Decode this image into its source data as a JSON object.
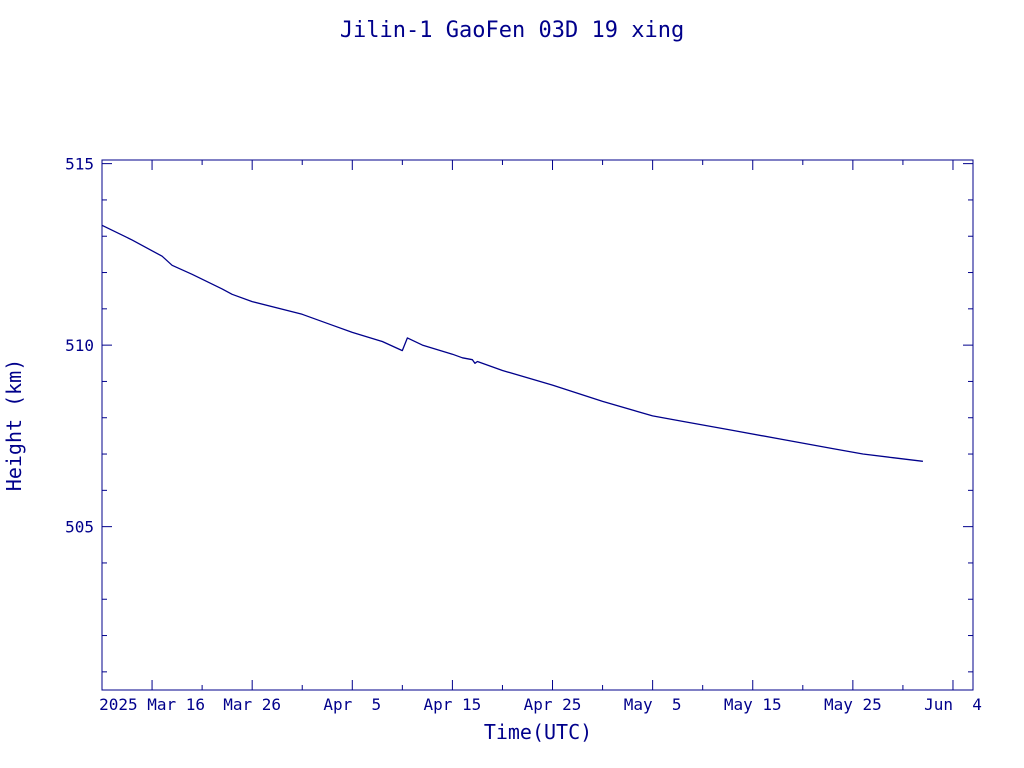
{
  "chart_data": {
    "type": "line",
    "title": "Jilin-1 GaoFen 03D 19 xing",
    "xlabel": "Time(UTC)",
    "ylabel": "Height (km)",
    "color": "#00008b",
    "x_range": [
      "2025-03-11",
      "2025-06-06"
    ],
    "ylim": [
      500.5,
      515.1
    ],
    "x_ticks": [
      {
        "date": "2025-03-16",
        "label": "2025 Mar 16"
      },
      {
        "date": "2025-03-26",
        "label": "Mar 26"
      },
      {
        "date": "2025-04-05",
        "label": "Apr  5"
      },
      {
        "date": "2025-04-15",
        "label": "Apr 15"
      },
      {
        "date": "2025-04-25",
        "label": "Apr 25"
      },
      {
        "date": "2025-05-05",
        "label": "May  5"
      },
      {
        "date": "2025-05-15",
        "label": "May 15"
      },
      {
        "date": "2025-05-25",
        "label": "May 25"
      },
      {
        "date": "2025-06-04",
        "label": "Jun  4"
      }
    ],
    "y_ticks": [
      515,
      510,
      505
    ],
    "series": [
      {
        "points": [
          [
            "2025-03-11",
            513.3
          ],
          [
            "2025-03-14",
            512.9
          ],
          [
            "2025-03-16",
            512.6
          ],
          [
            "2025-03-17",
            512.45
          ],
          [
            "2025-03-18",
            512.2
          ],
          [
            "2025-03-20",
            511.95
          ],
          [
            "2025-03-23",
            511.55
          ],
          [
            "2025-03-24",
            511.4
          ],
          [
            "2025-03-26",
            511.2
          ],
          [
            "2025-03-31",
            510.85
          ],
          [
            "2025-04-03",
            510.55
          ],
          [
            "2025-04-05",
            510.35
          ],
          [
            "2025-04-08",
            510.1
          ],
          [
            "2025-04-10",
            509.85
          ],
          [
            "2025-04-10T12:00",
            510.2
          ],
          [
            "2025-04-12",
            510.0
          ],
          [
            "2025-04-15",
            509.75
          ],
          [
            "2025-04-16",
            509.65
          ],
          [
            "2025-04-17",
            509.6
          ],
          [
            "2025-04-17T06:00",
            509.5
          ],
          [
            "2025-04-17T12:00",
            509.55
          ],
          [
            "2025-04-20",
            509.3
          ],
          [
            "2025-04-25",
            508.9
          ],
          [
            "2025-04-30",
            508.45
          ],
          [
            "2025-05-05",
            508.05
          ],
          [
            "2025-05-08",
            507.9
          ],
          [
            "2025-05-13",
            507.65
          ],
          [
            "2025-05-18",
            507.4
          ],
          [
            "2025-05-23",
            507.15
          ],
          [
            "2025-05-26",
            507.0
          ],
          [
            "2025-05-29",
            506.9
          ],
          [
            "2025-06-01",
            506.8
          ]
        ]
      }
    ]
  }
}
